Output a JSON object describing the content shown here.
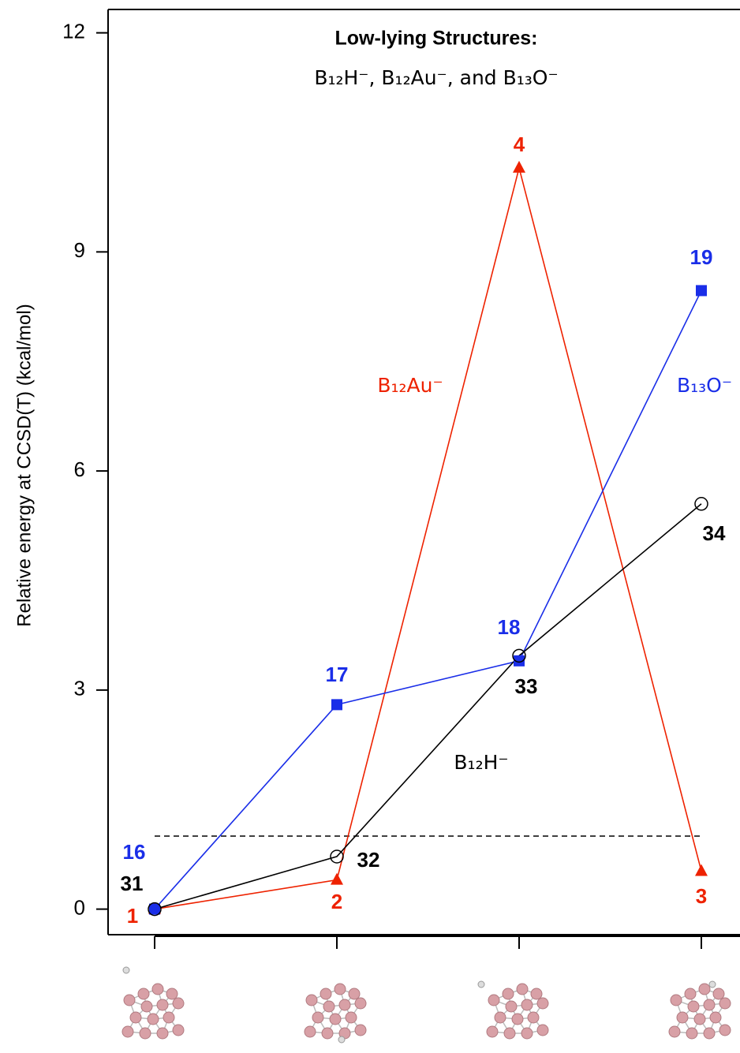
{
  "chart_data": {
    "type": "line",
    "title": "Low-lying Structures:",
    "subtitle": "B₁₂H⁻, B₁₂Au⁻, and B₁₃O⁻",
    "y_label": "Relative energy at CCSD(T)  (kcal/mol)",
    "categories": [
      null,
      null,
      null,
      null
    ],
    "ylim": [
      -0.35,
      12.32
    ],
    "yticks": [
      0,
      3,
      6,
      9,
      12
    ],
    "reference_line": 1,
    "series": [
      {
        "name": "B₁₂Au⁻",
        "color": "#ee2200",
        "marker": "triangle",
        "values": [
          0,
          0.4,
          10.15,
          0.52
        ],
        "labels": [
          "1",
          "2",
          "4",
          "3"
        ]
      },
      {
        "name": "B₁₃O⁻",
        "color": "#1a2ee8",
        "marker": "square",
        "values": [
          0,
          2.8,
          3.4,
          8.47
        ],
        "labels": [
          "16",
          "17",
          "18",
          "19"
        ]
      },
      {
        "name": "B₁₂H⁻",
        "color": "#000000",
        "marker": "open-circle",
        "values": [
          0,
          0.72,
          3.47,
          5.55
        ],
        "labels": [
          "31",
          "32",
          "33",
          "34"
        ]
      }
    ]
  }
}
